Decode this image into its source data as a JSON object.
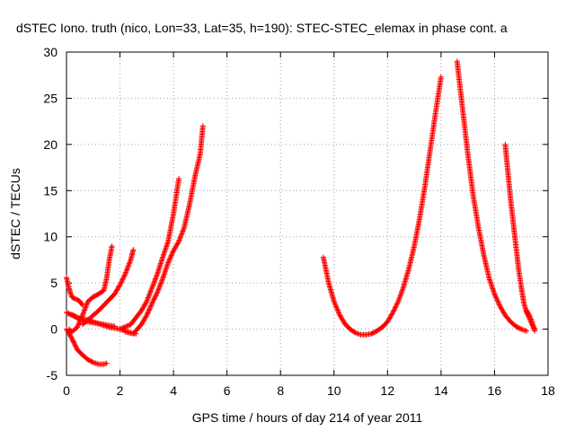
{
  "chart_data": {
    "type": "scatter",
    "title": "dSTEC Iono. truth (nico, Lon=33, Lat=35, h=190): STEC-STEC_elemax in phase cont. a",
    "xlabel": "GPS time / hours of day 214 of year 2011",
    "ylabel": "dSTEC  / TECUs",
    "xlim": [
      0,
      18
    ],
    "ylim": [
      -5,
      30
    ],
    "xticks": [
      0,
      2,
      4,
      6,
      8,
      10,
      12,
      14,
      16,
      18
    ],
    "yticks": [
      -5,
      0,
      5,
      10,
      15,
      20,
      25,
      30
    ],
    "grid": true,
    "marker": "+",
    "color": "#ff0000",
    "series": [
      {
        "x": [
          0.0,
          0.1,
          0.2,
          0.3,
          0.4,
          0.6,
          0.8,
          1.0,
          1.2,
          1.4,
          1.5
        ],
        "y": [
          0.0,
          -0.5,
          -1.0,
          -1.6,
          -2.2,
          -2.8,
          -3.3,
          -3.6,
          -3.8,
          -3.8,
          -3.7
        ]
      },
      {
        "x": [
          0.0,
          0.05,
          0.1,
          0.15,
          0.2,
          0.3,
          0.4,
          0.5,
          0.6
        ],
        "y": [
          5.6,
          5.0,
          4.4,
          3.9,
          3.5,
          3.3,
          3.2,
          3.0,
          2.6
        ]
      },
      {
        "x": [
          0.0,
          0.2,
          0.4,
          0.6,
          0.8,
          1.0,
          1.2,
          1.4,
          1.6,
          1.8,
          2.0,
          2.2,
          2.4,
          2.6
        ],
        "y": [
          1.8,
          1.5,
          1.3,
          1.1,
          1.0,
          0.8,
          0.6,
          0.4,
          0.2,
          0.1,
          0.0,
          -0.2,
          -0.4,
          -0.5
        ]
      },
      {
        "x": [
          0.1,
          0.2,
          0.4,
          0.6,
          0.8,
          1.0,
          1.2,
          1.4,
          1.5,
          1.6,
          1.7
        ],
        "y": [
          0.0,
          -0.3,
          0.2,
          1.5,
          3.0,
          3.5,
          3.8,
          4.2,
          5.5,
          7.5,
          9.0
        ]
      },
      {
        "x": [
          0.6,
          0.8,
          1.0,
          1.2,
          1.4,
          1.6,
          1.8,
          2.0,
          2.2,
          2.4,
          2.5
        ],
        "y": [
          0.5,
          1.0,
          1.5,
          2.0,
          2.6,
          3.2,
          3.8,
          4.8,
          6.0,
          7.5,
          8.6
        ]
      },
      {
        "x": [
          0.2,
          0.4,
          0.6,
          0.8,
          1.0,
          1.2,
          1.4,
          1.6,
          1.8
        ],
        "y": [
          1.6,
          1.2,
          1.0,
          0.8,
          0.7,
          0.6,
          0.5,
          0.4,
          0.3
        ]
      },
      {
        "x": [
          2.0,
          2.4,
          2.8,
          3.0,
          3.2,
          3.4,
          3.6,
          3.8,
          4.0,
          4.2
        ],
        "y": [
          0.0,
          0.5,
          2.0,
          3.0,
          4.5,
          6.0,
          7.8,
          9.5,
          12.5,
          16.3
        ]
      },
      {
        "x": [
          2.2,
          2.5,
          2.8,
          3.0,
          3.2,
          3.4,
          3.6,
          3.8,
          4.0,
          4.2,
          4.4,
          4.6,
          4.8,
          5.0,
          5.1
        ],
        "y": [
          -0.3,
          -0.5,
          0.5,
          1.5,
          2.8,
          4.0,
          5.5,
          7.2,
          8.5,
          9.5,
          11.0,
          13.5,
          16.5,
          19.0,
          22.0
        ]
      },
      {
        "x": [
          9.6,
          9.8,
          10.0,
          10.2,
          10.4,
          10.6,
          10.8,
          11.0,
          11.2,
          11.4,
          11.6,
          11.8,
          12.0,
          12.2,
          12.4,
          12.6,
          12.8,
          13.0,
          13.2,
          13.4,
          13.6,
          13.8,
          14.0
        ],
        "y": [
          7.8,
          5.0,
          3.0,
          1.6,
          0.6,
          0.0,
          -0.4,
          -0.6,
          -0.6,
          -0.5,
          -0.2,
          0.2,
          0.8,
          1.8,
          3.0,
          4.6,
          6.6,
          9.0,
          12.0,
          15.5,
          19.5,
          23.5,
          27.3
        ]
      },
      {
        "x": [
          14.6,
          14.8,
          15.0,
          15.2,
          15.4,
          15.6,
          15.8,
          16.0,
          16.2,
          16.4,
          16.6,
          16.8,
          17.0,
          17.2
        ],
        "y": [
          29.0,
          24.0,
          19.0,
          14.5,
          11.0,
          8.0,
          5.5,
          3.8,
          2.5,
          1.5,
          0.8,
          0.3,
          0.0,
          -0.2
        ]
      },
      {
        "x": [
          16.4,
          16.5,
          16.6,
          16.7,
          16.8,
          16.9,
          17.0,
          17.1,
          17.2,
          17.3,
          17.4,
          17.5
        ],
        "y": [
          20.0,
          17.0,
          14.0,
          11.5,
          9.0,
          6.5,
          4.5,
          2.8,
          1.8,
          1.2,
          0.5,
          0.0
        ]
      },
      {
        "x": [
          17.2,
          17.3,
          17.4,
          17.5
        ],
        "y": [
          2.0,
          1.5,
          0.8,
          -0.2
        ]
      }
    ]
  }
}
